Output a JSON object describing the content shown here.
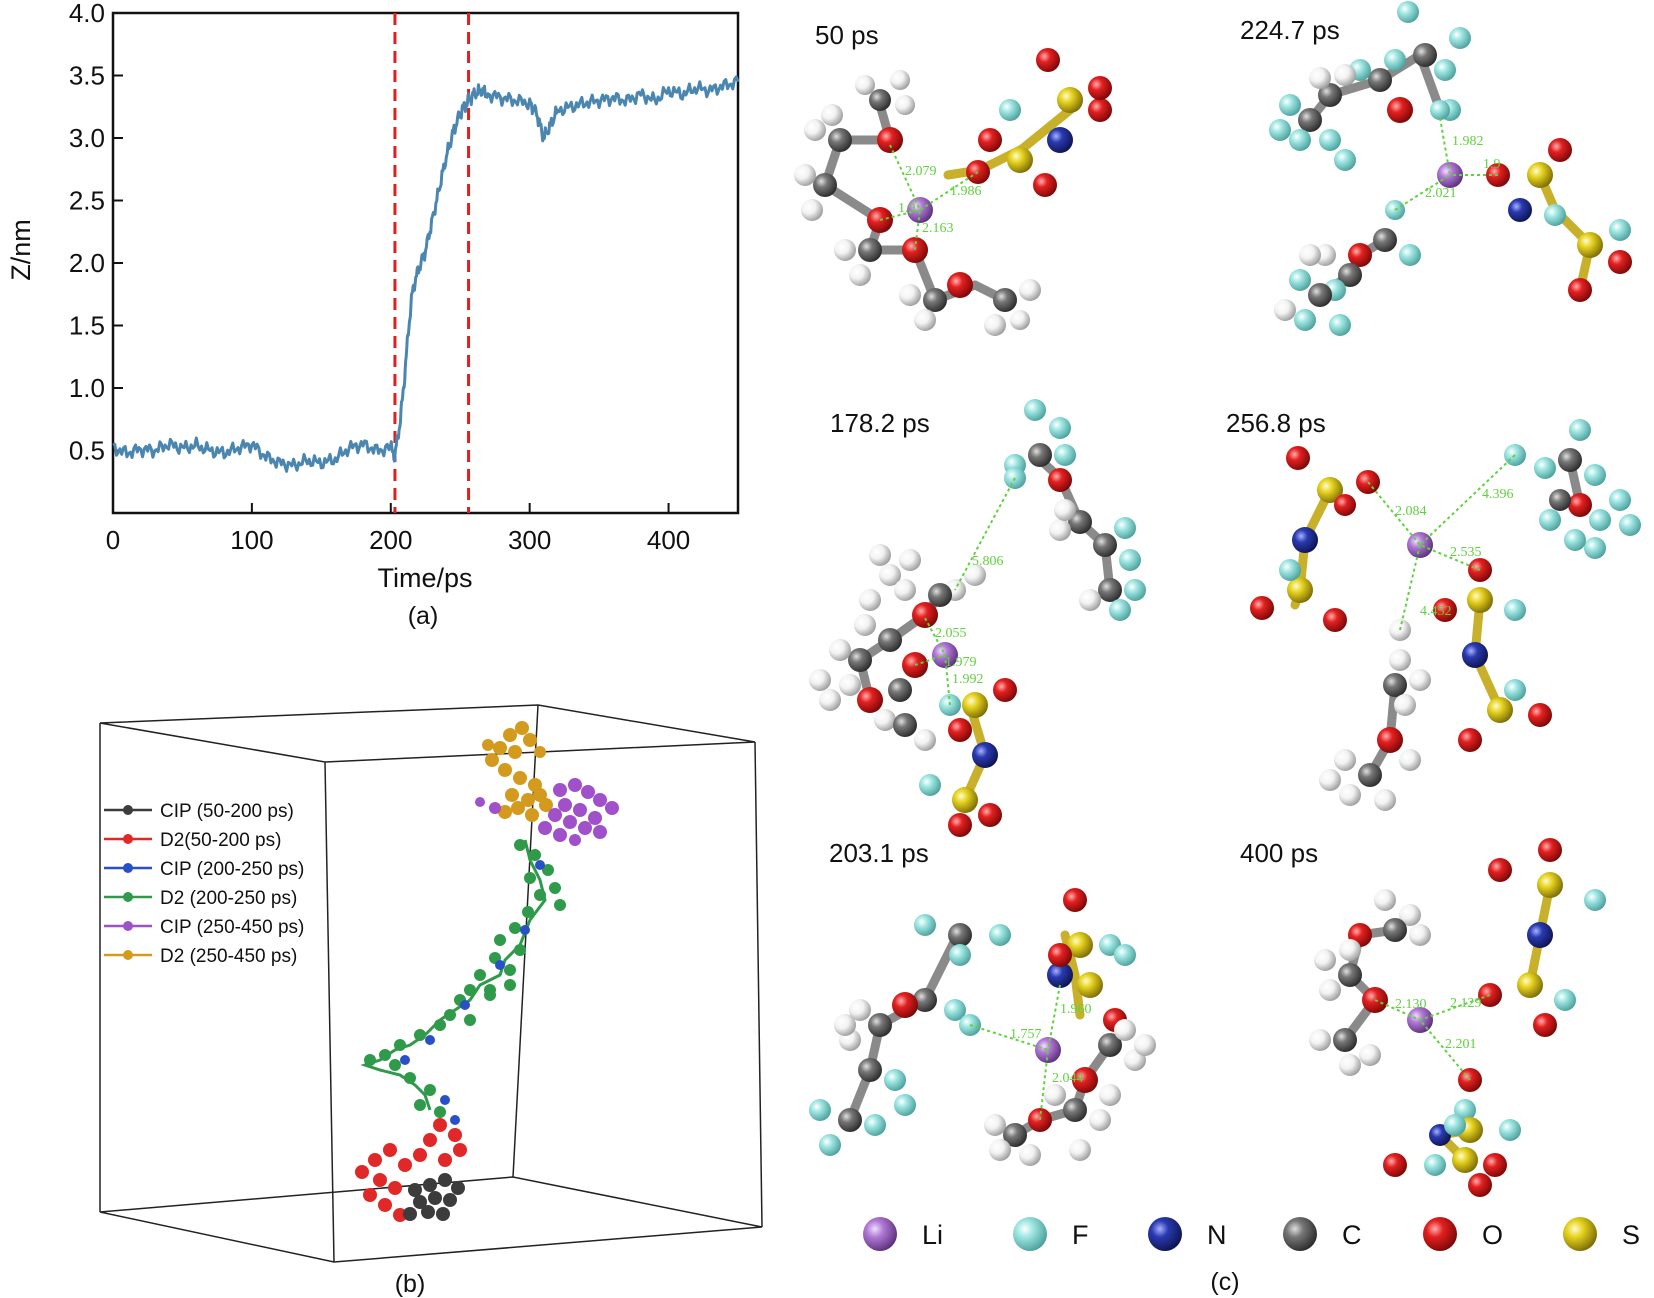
{
  "figure": {
    "panel_a_label": "(a)",
    "panel_b_label": "(b)",
    "panel_c_label": "(c)"
  },
  "chart_data": {
    "type": "line",
    "xlabel": "Time/ps",
    "ylabel": "Z/nm",
    "xlim": [
      0,
      450
    ],
    "ylim": [
      0,
      4.0
    ],
    "x_ticks": [
      "0",
      "100",
      "200",
      "300",
      "400"
    ],
    "y_ticks": [
      "0.5",
      "1.0",
      "1.5",
      "2.0",
      "2.5",
      "3.0",
      "3.5",
      "4.0"
    ],
    "vlines": [
      203,
      256
    ],
    "series": [
      {
        "color": "#4a86b0",
        "x": [
          0,
          10,
          20,
          30,
          40,
          50,
          60,
          70,
          80,
          90,
          100,
          110,
          120,
          130,
          140,
          150,
          160,
          170,
          180,
          190,
          200,
          203,
          207,
          210,
          213,
          216,
          220,
          225,
          230,
          235,
          240,
          245,
          250,
          253,
          256,
          260,
          265,
          270,
          280,
          290,
          300,
          305,
          310,
          315,
          320,
          330,
          340,
          350,
          360,
          370,
          380,
          390,
          400,
          410,
          420,
          430,
          440,
          450
        ],
        "y": [
          0.52,
          0.48,
          0.51,
          0.5,
          0.55,
          0.52,
          0.54,
          0.5,
          0.48,
          0.52,
          0.55,
          0.45,
          0.4,
          0.38,
          0.42,
          0.4,
          0.43,
          0.52,
          0.55,
          0.5,
          0.52,
          0.46,
          0.75,
          1.1,
          1.5,
          1.8,
          1.95,
          2.1,
          2.35,
          2.6,
          2.85,
          3.05,
          3.2,
          3.25,
          3.3,
          3.35,
          3.38,
          3.35,
          3.32,
          3.3,
          3.28,
          3.2,
          3.0,
          3.1,
          3.22,
          3.25,
          3.28,
          3.3,
          3.32,
          3.3,
          3.35,
          3.3,
          3.38,
          3.35,
          3.4,
          3.38,
          3.42,
          3.45
        ]
      }
    ]
  },
  "trajectory": {
    "legend": [
      {
        "label": "CIP (50-200 ps)",
        "color": "#3c3c3c"
      },
      {
        "label": "D2(50-200 ps)",
        "color": "#e02828"
      },
      {
        "label": "CIP (200-250 ps)",
        "color": "#2850c8"
      },
      {
        "label": "D2 (200-250 ps)",
        "color": "#2e9a4a"
      },
      {
        "label": "CIP (250-450 ps)",
        "color": "#a050c8"
      },
      {
        "label": "D2 (250-450 ps)",
        "color": "#d49a1e"
      }
    ]
  },
  "snapshots": [
    {
      "time": "50 ps",
      "distances": [
        "2.079",
        "1.986",
        "1.9",
        "2.163"
      ]
    },
    {
      "time": "224.7 ps",
      "distances": [
        "1.982",
        "2.021",
        "1.9"
      ]
    },
    {
      "time": "178.2 ps",
      "distances": [
        "5.806",
        "2.055",
        "1.979",
        "1.992"
      ]
    },
    {
      "time": "256.8 ps",
      "distances": [
        "2.084",
        "4.396",
        "2.535",
        "4.452"
      ]
    },
    {
      "time": "203.1 ps",
      "distances": [
        "1.960",
        "1.757",
        "2.044"
      ]
    },
    {
      "time": "400 ps",
      "distances": [
        "2.130",
        "2.129",
        "2.201"
      ]
    }
  ],
  "elements_legend": [
    {
      "symbol": "Li",
      "color": "#a46cc8"
    },
    {
      "symbol": "F",
      "color": "#8fe0dc"
    },
    {
      "symbol": "N",
      "color": "#2a3aa0"
    },
    {
      "symbol": "C",
      "color": "#6e6e6e"
    },
    {
      "symbol": "O",
      "color": "#e01e1e"
    },
    {
      "symbol": "S",
      "color": "#e0cc20"
    }
  ]
}
